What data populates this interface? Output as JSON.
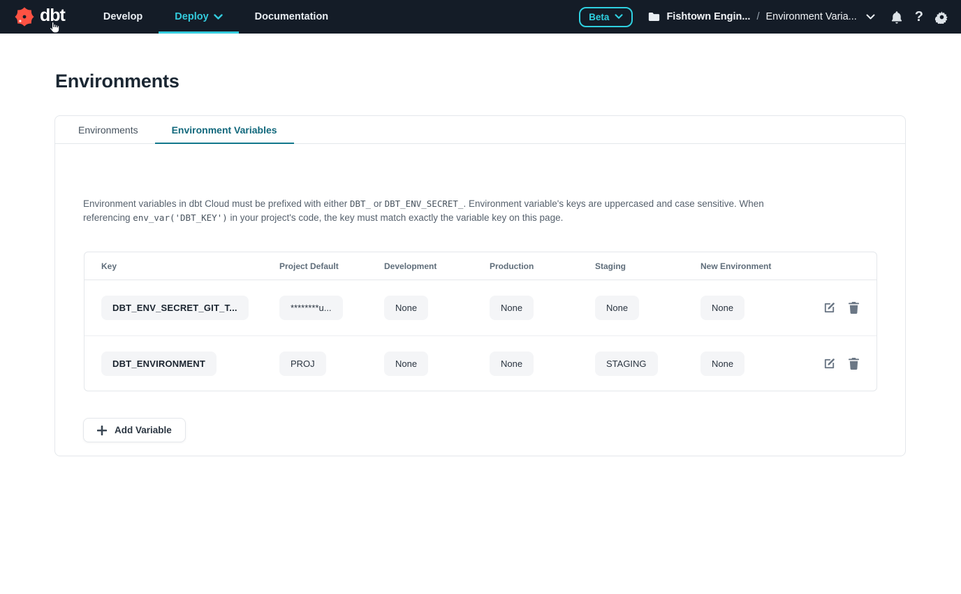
{
  "nav": {
    "logo_text": "dbt",
    "items": [
      {
        "label": "Develop",
        "active": false
      },
      {
        "label": "Deploy",
        "active": true,
        "has_chevron": true
      },
      {
        "label": "Documentation",
        "active": false
      }
    ],
    "beta_label": "Beta",
    "breadcrumb": {
      "project": "Fishtown Engin...",
      "separator": "/",
      "page": "Environment Varia..."
    }
  },
  "page": {
    "title": "Environments"
  },
  "tabs": [
    {
      "label": "Environments",
      "active": false
    },
    {
      "label": "Environment Variables",
      "active": true
    }
  ],
  "description": {
    "segments": [
      {
        "type": "text",
        "value": "Environment variables in dbt Cloud must be prefixed with either "
      },
      {
        "type": "code",
        "value": "DBT_"
      },
      {
        "type": "text",
        "value": " or "
      },
      {
        "type": "code",
        "value": "DBT_ENV_SECRET_"
      },
      {
        "type": "text",
        "value": ". Environment variable's keys are uppercased and case sensitive. When referencing "
      },
      {
        "type": "code",
        "value": "env_var('DBT_KEY')"
      },
      {
        "type": "text",
        "value": " in your project's code, the key must match exactly the variable key on this page."
      }
    ]
  },
  "table": {
    "headers": [
      "Key",
      "Project Default",
      "Development",
      "Production",
      "Staging",
      "New Environment"
    ],
    "rows": [
      {
        "key": "DBT_ENV_SECRET_GIT_T...",
        "values": [
          "********u...",
          "None",
          "None",
          "None",
          "None"
        ]
      },
      {
        "key": "DBT_ENVIRONMENT",
        "values": [
          "PROJ",
          "None",
          "None",
          "STAGING",
          "None"
        ]
      }
    ]
  },
  "add_button": {
    "label": "Add Variable"
  },
  "colors": {
    "nav_background": "#141c27",
    "accent_teal": "#33cbdd",
    "tab_active_teal": "#11687c",
    "logo_red": "#ff5243",
    "pill_background": "#f4f5f7",
    "border": "#e4e7eb"
  }
}
